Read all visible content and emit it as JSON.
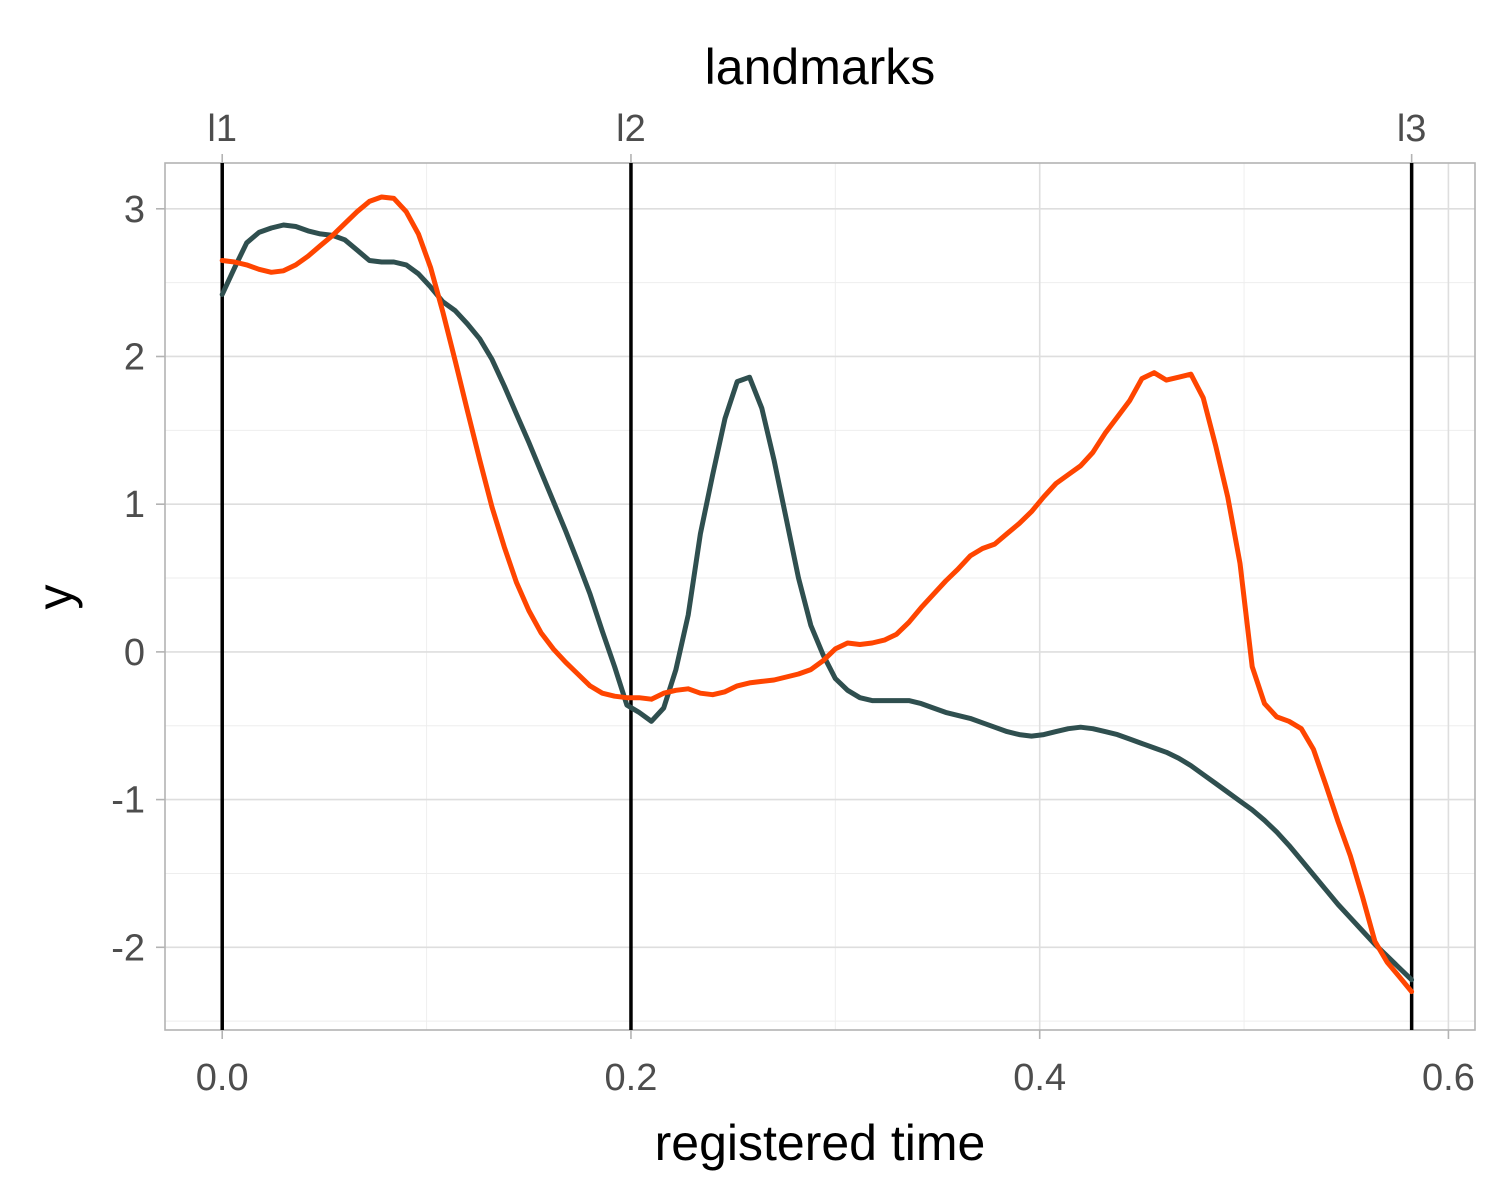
{
  "chart_data": {
    "type": "line",
    "title": "",
    "xlabel": "registered time",
    "ylabel": "y",
    "top_axis_title": "landmarks",
    "xlim": [
      -0.028,
      0.613
    ],
    "ylim": [
      -2.56,
      3.31
    ],
    "x_ticks": [
      0.0,
      0.2,
      0.4,
      0.6
    ],
    "x_tick_labels": [
      "0.0",
      "0.2",
      "0.4",
      "0.6"
    ],
    "y_ticks": [
      -2,
      -1,
      0,
      1,
      2,
      3
    ],
    "y_tick_labels": [
      "-2",
      "-1",
      "0",
      "1",
      "2",
      "3"
    ],
    "grid": true,
    "landmarks": [
      {
        "label": "l1",
        "x": 0.0
      },
      {
        "label": "l2",
        "x": 0.2
      },
      {
        "label": "l3",
        "x": 0.582
      }
    ],
    "series": [
      {
        "color": "#2f4f4f",
        "x": [
          0.0,
          0.006,
          0.012,
          0.018,
          0.024,
          0.03,
          0.036,
          0.042,
          0.048,
          0.054,
          0.06,
          0.066,
          0.072,
          0.078,
          0.084,
          0.09,
          0.096,
          0.102,
          0.108,
          0.114,
          0.12,
          0.126,
          0.132,
          0.138,
          0.144,
          0.15,
          0.156,
          0.162,
          0.168,
          0.174,
          0.18,
          0.186,
          0.192,
          0.198,
          0.204,
          0.21,
          0.216,
          0.222,
          0.228,
          0.234,
          0.24,
          0.246,
          0.252,
          0.258,
          0.264,
          0.27,
          0.276,
          0.282,
          0.288,
          0.294,
          0.3,
          0.306,
          0.312,
          0.318,
          0.324,
          0.33,
          0.336,
          0.342,
          0.348,
          0.354,
          0.36,
          0.366,
          0.372,
          0.378,
          0.384,
          0.39,
          0.396,
          0.402,
          0.408,
          0.414,
          0.42,
          0.426,
          0.432,
          0.438,
          0.444,
          0.45,
          0.456,
          0.462,
          0.468,
          0.474,
          0.48,
          0.486,
          0.492,
          0.498,
          0.504,
          0.51,
          0.516,
          0.522,
          0.528,
          0.534,
          0.54,
          0.546,
          0.552,
          0.558,
          0.564,
          0.57,
          0.576,
          0.582
        ],
        "y": [
          2.42,
          2.6,
          2.77,
          2.84,
          2.87,
          2.89,
          2.88,
          2.85,
          2.83,
          2.82,
          2.79,
          2.72,
          2.65,
          2.64,
          2.64,
          2.62,
          2.56,
          2.47,
          2.37,
          2.31,
          2.22,
          2.12,
          1.98,
          1.8,
          1.61,
          1.42,
          1.22,
          1.02,
          0.82,
          0.61,
          0.39,
          0.14,
          -0.1,
          -0.36,
          -0.41,
          -0.47,
          -0.38,
          -0.12,
          0.25,
          0.8,
          1.2,
          1.58,
          1.83,
          1.86,
          1.65,
          1.3,
          0.9,
          0.5,
          0.18,
          -0.02,
          -0.18,
          -0.26,
          -0.31,
          -0.33,
          -0.33,
          -0.33,
          -0.33,
          -0.35,
          -0.38,
          -0.41,
          -0.43,
          -0.45,
          -0.48,
          -0.51,
          -0.54,
          -0.56,
          -0.57,
          -0.56,
          -0.54,
          -0.52,
          -0.51,
          -0.52,
          -0.54,
          -0.56,
          -0.59,
          -0.62,
          -0.65,
          -0.68,
          -0.72,
          -0.77,
          -0.83,
          -0.89,
          -0.95,
          -1.01,
          -1.07,
          -1.14,
          -1.22,
          -1.31,
          -1.41,
          -1.51,
          -1.61,
          -1.71,
          -1.8,
          -1.89,
          -1.98,
          -2.06,
          -2.14,
          -2.22
        ]
      },
      {
        "color": "#ff4500",
        "x": [
          0.0,
          0.006,
          0.012,
          0.018,
          0.024,
          0.03,
          0.036,
          0.042,
          0.048,
          0.054,
          0.06,
          0.066,
          0.072,
          0.078,
          0.084,
          0.09,
          0.096,
          0.102,
          0.108,
          0.114,
          0.12,
          0.126,
          0.132,
          0.138,
          0.144,
          0.15,
          0.156,
          0.162,
          0.168,
          0.174,
          0.18,
          0.186,
          0.192,
          0.198,
          0.204,
          0.21,
          0.216,
          0.222,
          0.228,
          0.234,
          0.24,
          0.246,
          0.252,
          0.258,
          0.264,
          0.27,
          0.276,
          0.282,
          0.288,
          0.294,
          0.3,
          0.306,
          0.312,
          0.318,
          0.324,
          0.33,
          0.336,
          0.342,
          0.348,
          0.354,
          0.36,
          0.366,
          0.372,
          0.378,
          0.384,
          0.39,
          0.396,
          0.402,
          0.408,
          0.414,
          0.42,
          0.426,
          0.432,
          0.438,
          0.444,
          0.45,
          0.456,
          0.462,
          0.468,
          0.474,
          0.48,
          0.486,
          0.492,
          0.498,
          0.504,
          0.51,
          0.516,
          0.522,
          0.528,
          0.534,
          0.54,
          0.546,
          0.552,
          0.558,
          0.564,
          0.57,
          0.576,
          0.582
        ],
        "y": [
          2.65,
          2.64,
          2.62,
          2.59,
          2.57,
          2.58,
          2.62,
          2.68,
          2.75,
          2.82,
          2.9,
          2.98,
          3.05,
          3.08,
          3.07,
          2.98,
          2.83,
          2.6,
          2.3,
          1.97,
          1.63,
          1.3,
          0.98,
          0.71,
          0.47,
          0.28,
          0.13,
          0.02,
          -0.07,
          -0.15,
          -0.23,
          -0.28,
          -0.3,
          -0.31,
          -0.31,
          -0.32,
          -0.28,
          -0.26,
          -0.25,
          -0.28,
          -0.29,
          -0.27,
          -0.23,
          -0.21,
          -0.2,
          -0.19,
          -0.17,
          -0.15,
          -0.12,
          -0.06,
          0.02,
          0.06,
          0.05,
          0.06,
          0.08,
          0.12,
          0.2,
          0.3,
          0.39,
          0.48,
          0.56,
          0.65,
          0.7,
          0.73,
          0.8,
          0.87,
          0.95,
          1.05,
          1.14,
          1.2,
          1.26,
          1.35,
          1.48,
          1.59,
          1.7,
          1.85,
          1.89,
          1.84,
          1.86,
          1.88,
          1.72,
          1.4,
          1.05,
          0.6,
          -0.1,
          -0.35,
          -0.44,
          -0.47,
          -0.52,
          -0.66,
          -0.9,
          -1.15,
          -1.38,
          -1.66,
          -1.96,
          -2.1,
          -2.2,
          -2.3
        ]
      }
    ]
  }
}
